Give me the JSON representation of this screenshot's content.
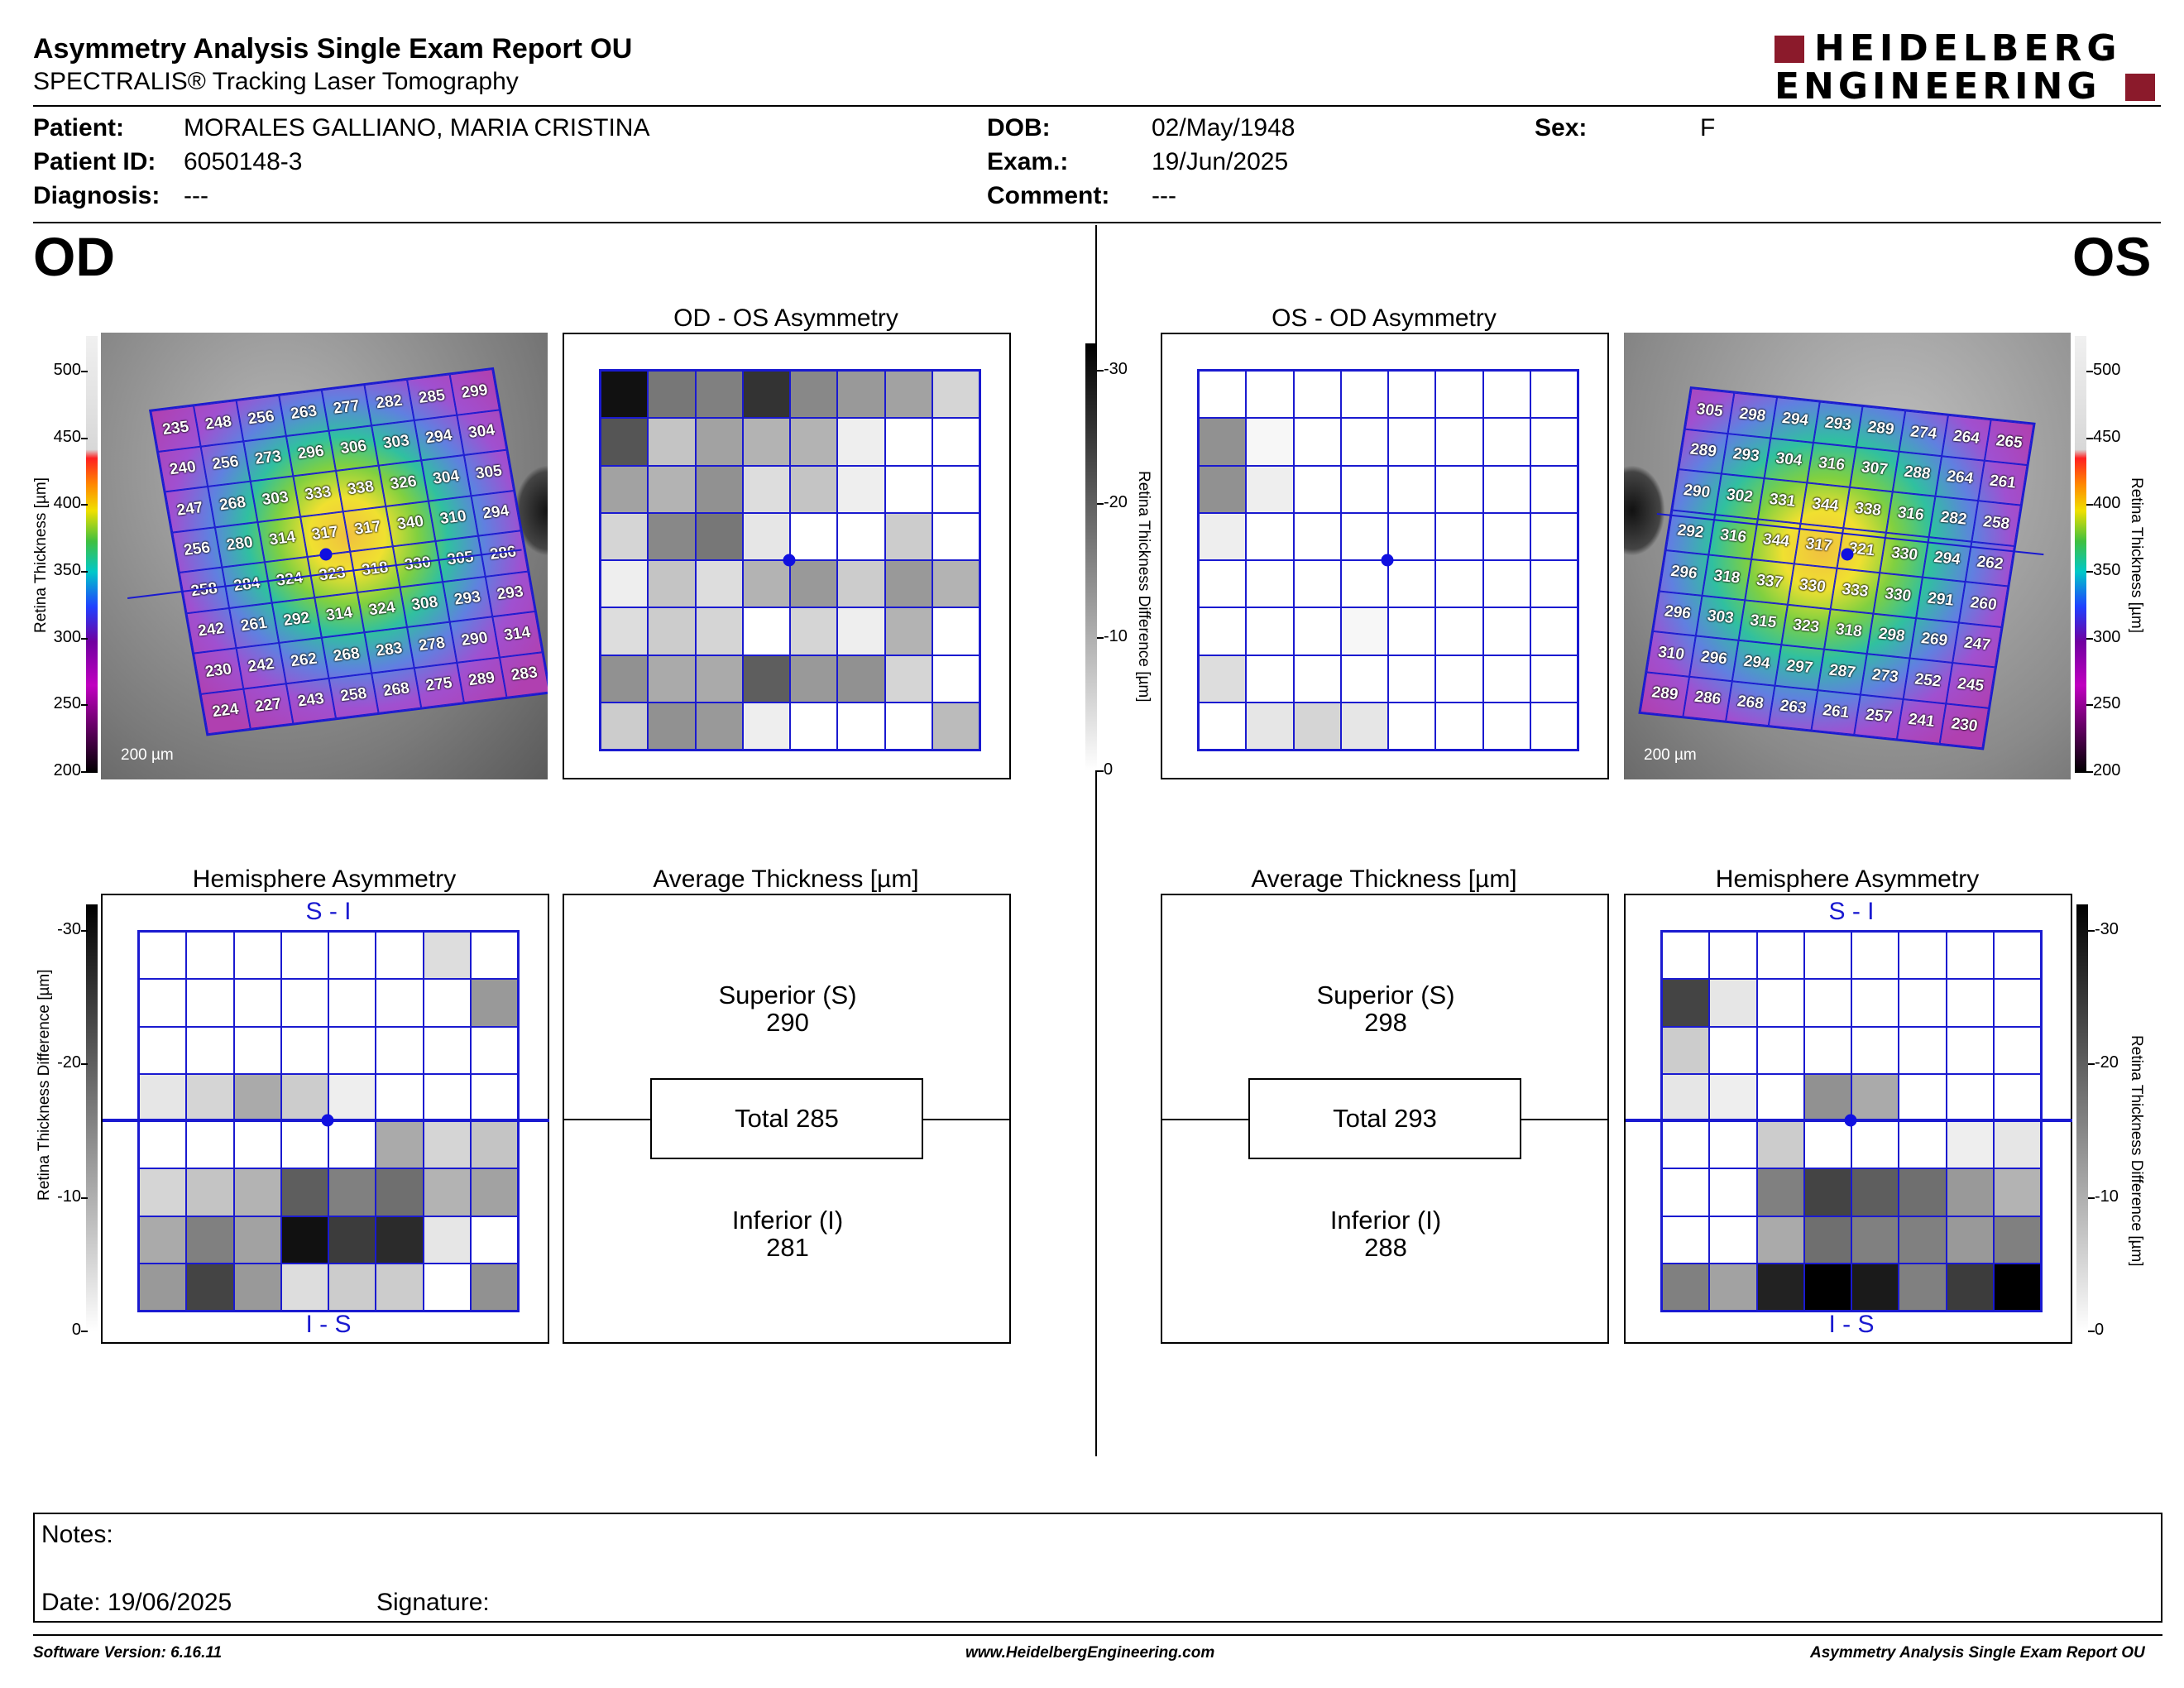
{
  "header": {
    "title": "Asymmetry Analysis Single Exam Report OU",
    "subtitle": "SPECTRALIS® Tracking Laser Tomography",
    "logo_line1": "HEIDELBERG",
    "logo_line2": "ENGINEERING",
    "brand_color": "#8b1a2b"
  },
  "patient": {
    "patient_label": "Patient:",
    "patient_value": "MORALES GALLIANO, MARIA CRISTINA",
    "id_label": "Patient ID:",
    "id_value": "6050148-3",
    "diag_label": "Diagnosis:",
    "diag_value": "---",
    "dob_label": "DOB:",
    "dob_value": "02/May/1948",
    "exam_label": "Exam.:",
    "exam_value": "19/Jun/2025",
    "comment_label": "Comment:",
    "comment_value": "---",
    "sex_label": "Sex:",
    "sex_value": "F"
  },
  "od": {
    "eye": "OD",
    "asym_title": "OD - OS Asymmetry",
    "hemi_title": "Hemisphere Asymmetry",
    "avg_title": "Average Thickness [µm]",
    "superior_label": "Superior (S)",
    "superior_value": "290",
    "total_label": "Total 285",
    "inferior_label": "Inferior (I)",
    "inferior_value": "281",
    "scale_bar": "200 µm",
    "thickness": [
      [
        235,
        248,
        256,
        263,
        277,
        282,
        285,
        299
      ],
      [
        240,
        256,
        273,
        296,
        306,
        303,
        294,
        304
      ],
      [
        247,
        268,
        303,
        333,
        338,
        326,
        304,
        305
      ],
      [
        256,
        280,
        314,
        317,
        317,
        340,
        310,
        294
      ],
      [
        258,
        284,
        324,
        323,
        318,
        330,
        305,
        286
      ],
      [
        242,
        261,
        292,
        314,
        324,
        308,
        293,
        293
      ],
      [
        230,
        242,
        262,
        268,
        283,
        278,
        290,
        314
      ],
      [
        224,
        227,
        243,
        258,
        268,
        275,
        289,
        283
      ]
    ],
    "asymmetry": [
      [
        28,
        16,
        15,
        24,
        14,
        12,
        11,
        5
      ],
      [
        20,
        7,
        11,
        9,
        9,
        2,
        0,
        0
      ],
      [
        11,
        9,
        13,
        4,
        7,
        2,
        0,
        0
      ],
      [
        5,
        14,
        16,
        3,
        0,
        0,
        6,
        0
      ],
      [
        2,
        7,
        4,
        9,
        12,
        6,
        12,
        9
      ],
      [
        4,
        6,
        5,
        0,
        5,
        2,
        9,
        0
      ],
      [
        13,
        10,
        10,
        19,
        12,
        13,
        5,
        0
      ],
      [
        6,
        13,
        12,
        2,
        0,
        0,
        0,
        8
      ]
    ],
    "hemisphere": [
      [
        0,
        0,
        0,
        0,
        0,
        0,
        4,
        0
      ],
      [
        0,
        0,
        0,
        0,
        0,
        0,
        0,
        12
      ],
      [
        0,
        0,
        0,
        0,
        0,
        0,
        0,
        0
      ],
      [
        3,
        5,
        10,
        6,
        2,
        0,
        0,
        0
      ],
      [
        0,
        0,
        0,
        0,
        0,
        10,
        5,
        7
      ],
      [
        5,
        7,
        9,
        19,
        15,
        17,
        9,
        11
      ],
      [
        10,
        15,
        11,
        28,
        23,
        25,
        3,
        0
      ],
      [
        12,
        22,
        12,
        4,
        6,
        6,
        0,
        13
      ]
    ]
  },
  "os": {
    "eye": "OS",
    "asym_title": "OS - OD Asymmetry",
    "hemi_title": "Hemisphere Asymmetry",
    "avg_title": "Average Thickness [µm]",
    "superior_label": "Superior (S)",
    "superior_value": "298",
    "total_label": "Total 293",
    "inferior_label": "Inferior (I)",
    "inferior_value": "288",
    "scale_bar": "200 µm",
    "thickness": [
      [
        305,
        298,
        294,
        293,
        289,
        274,
        264,
        265
      ],
      [
        289,
        293,
        304,
        316,
        307,
        288,
        264,
        261
      ],
      [
        290,
        302,
        331,
        344,
        338,
        316,
        282,
        258
      ],
      [
        292,
        316,
        344,
        317,
        321,
        330,
        294,
        262
      ],
      [
        296,
        318,
        337,
        330,
        333,
        330,
        291,
        260
      ],
      [
        296,
        303,
        315,
        323,
        318,
        298,
        269,
        247
      ],
      [
        310,
        296,
        294,
        297,
        287,
        273,
        252,
        245
      ],
      [
        289,
        286,
        268,
        263,
        261,
        257,
        241,
        230
      ]
    ],
    "asymmetry": [
      [
        0,
        0,
        0,
        0,
        0,
        0,
        0,
        0
      ],
      [
        13,
        1,
        0,
        0,
        0,
        0,
        0,
        0
      ],
      [
        13,
        2,
        0,
        0,
        0,
        0,
        0,
        0
      ],
      [
        2,
        0,
        0,
        0,
        0,
        0,
        0,
        0
      ],
      [
        0,
        0,
        0,
        0,
        0,
        0,
        0,
        0
      ],
      [
        0,
        0,
        0,
        1,
        0,
        0,
        0,
        0
      ],
      [
        4,
        0,
        0,
        0,
        0,
        0,
        0,
        0
      ],
      [
        0,
        3,
        5,
        3,
        0,
        0,
        0,
        0
      ]
    ],
    "hemisphere": [
      [
        0,
        0,
        0,
        0,
        0,
        0,
        0,
        0
      ],
      [
        22,
        3,
        0,
        0,
        0,
        0,
        0,
        0
      ],
      [
        6,
        0,
        0,
        0,
        0,
        0,
        0,
        0
      ],
      [
        3,
        2,
        0,
        13,
        10,
        0,
        0,
        0
      ],
      [
        0,
        0,
        6,
        0,
        0,
        0,
        2,
        3
      ],
      [
        0,
        0,
        15,
        22,
        19,
        17,
        12,
        9
      ],
      [
        0,
        0,
        10,
        17,
        15,
        15,
        12,
        15
      ],
      [
        15,
        11,
        26,
        30,
        27,
        15,
        23,
        31
      ]
    ]
  },
  "colorbars": {
    "thickness_label": "Retina  Thickness [µm]",
    "thickness_ticks": [
      "500",
      "450",
      "400",
      "350",
      "300",
      "250",
      "200"
    ],
    "diff_label": "Retina Thickness Difference [µm]",
    "diff_ticks": [
      "-30",
      "-20",
      "-10",
      "0"
    ]
  },
  "hemi_labels": {
    "top": "S - I",
    "bottom": "I - S"
  },
  "notes": {
    "notes_label": "Notes:",
    "date_label": "Date: 19/06/2025",
    "signature_label": "Signature:"
  },
  "footer": {
    "version": "Software Version: 6.16.11",
    "website": "www.HeidelbergEngineering.com",
    "report": "Asymmetry Analysis Single Exam Report OU"
  }
}
